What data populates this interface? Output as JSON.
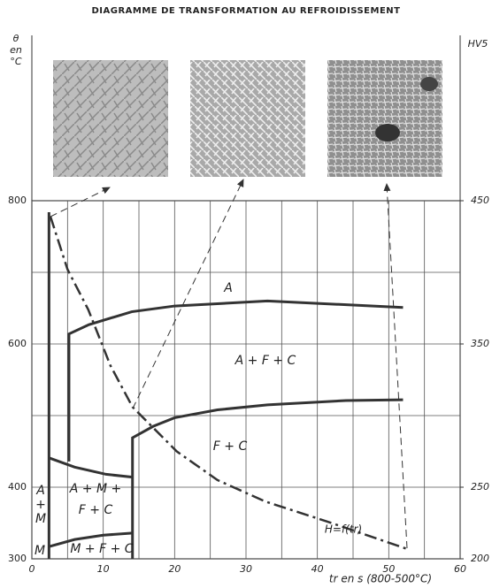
{
  "chart_data": {
    "type": "line",
    "title": "DIAGRAMME DE TRANSFORMATION AU REFROIDISSEMENT",
    "y_label": [
      "θ",
      "en",
      "°C"
    ],
    "y2_label": "HV5",
    "x_label": "tr en s (800-500°C)",
    "xlim": [
      0,
      60
    ],
    "xticks": [
      0,
      {
        "value": 5,
        "label": null
      },
      10,
      {
        "value": 15,
        "label": null
      },
      20,
      {
        "value": 25,
        "label": null
      },
      30,
      {
        "value": 35,
        "label": null
      },
      40,
      {
        "value": 45,
        "label": null
      },
      50,
      {
        "value": 55,
        "label": null
      },
      60
    ],
    "ylim": [
      300,
      800
    ],
    "yticks": [
      300,
      400,
      {
        "value": 500,
        "label": null
      },
      600,
      {
        "value": 700,
        "label": null
      },
      800
    ],
    "y2lim": [
      200,
      450
    ],
    "y2ticks": [
      200,
      250,
      350,
      450
    ],
    "grid": true,
    "series": [
      {
        "x": [
          5.2,
          5.2,
          8,
          14,
          20,
          33,
          52
        ],
        "values": [
          436,
          614,
          627,
          645,
          653,
          660,
          651
        ],
        "color": "#333333",
        "dash": "solid",
        "width": 3
      },
      {
        "x": [
          14.1,
          14.1,
          17,
          20,
          26,
          33,
          44,
          52
        ],
        "values": [
          300,
          469,
          485,
          497,
          508,
          515,
          521,
          522
        ],
        "color": "#333333",
        "dash": "solid",
        "width": 3
      },
      {
        "x": [
          2.4,
          6,
          10.4,
          14.1
        ],
        "values": [
          441,
          428,
          418,
          414
        ],
        "color": "#333333",
        "dash": "solid",
        "width": 3
      },
      {
        "x": [
          2.4,
          6,
          10,
          14.1
        ],
        "values": [
          317,
          327,
          333,
          336
        ],
        "color": "#333333",
        "dash": "solid",
        "width": 3
      },
      {
        "x": [
          2.4,
          2.4
        ],
        "values": [
          300,
          784
        ],
        "color": "#333333",
        "dash": "solid",
        "width": 3
      },
      {
        "x": [
          2.6,
          5,
          7.9,
          11,
          14.1,
          20.3,
          26,
          32.7,
          41.4,
          52.5
        ],
        "values": [
          439,
          402,
          374,
          335,
          306,
          275,
          255,
          240,
          226,
          207
        ],
        "color": "#333333",
        "dash": "dashdot",
        "width": 2.5,
        "axis": "y2"
      }
    ],
    "annotations": [
      "A",
      "A + F + C",
      "F + C",
      "A + M +",
      "F + C",
      "A",
      "+",
      "M",
      "M",
      "M + F + C",
      "H=f(tr)"
    ]
  }
}
